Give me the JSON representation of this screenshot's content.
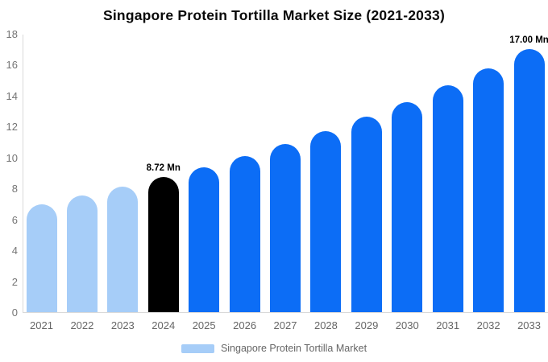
{
  "chart_data": {
    "type": "bar",
    "title": "Singapore Protein Tortilla Market Size (2021-2033)",
    "unit": "Mn",
    "categories": [
      "2021",
      "2022",
      "2023",
      "2024",
      "2025",
      "2026",
      "2027",
      "2028",
      "2029",
      "2030",
      "2031",
      "2032",
      "2033"
    ],
    "values": [
      6.98,
      7.52,
      8.1,
      8.72,
      9.39,
      10.11,
      10.89,
      11.73,
      12.63,
      13.6,
      14.65,
      15.78,
      17.0
    ],
    "bar_colors": [
      "#a6cdf8",
      "#a6cdf8",
      "#a6cdf8",
      "#000000",
      "#0c6df6",
      "#0c6df6",
      "#0c6df6",
      "#0c6df6",
      "#0c6df6",
      "#0c6df6",
      "#0c6df6",
      "#0c6df6",
      "#0c6df6"
    ],
    "xlabel": "",
    "ylabel": "",
    "ylim": [
      0,
      18
    ],
    "yticks": [
      "0",
      "2",
      "4",
      "6",
      "8",
      "10",
      "12",
      "14",
      "16",
      "18"
    ],
    "grid": false,
    "legend_position": "bottom",
    "annotations": [
      {
        "category": "2024",
        "text": "8.72 Mn"
      },
      {
        "category": "2033",
        "text": "17.00 Mn"
      }
    ]
  },
  "legend": {
    "label": "Singapore Protein Tortilla Market",
    "swatch_color": "#a6cdf8"
  },
  "colors": {
    "axis_line": "#d9d9d9",
    "tick_text": "#757575",
    "historical_bar": "#a6cdf8",
    "highlight_bar": "#000000",
    "forecast_bar": "#0c6df6"
  }
}
